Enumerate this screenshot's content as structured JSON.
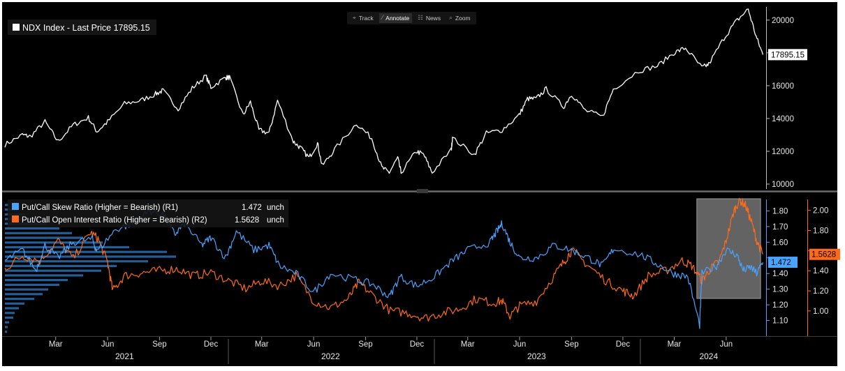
{
  "toolbar": {
    "items": [
      {
        "label": "Track",
        "icon": "crosshair-icon",
        "glyph": "⌖"
      },
      {
        "label": "Annotate",
        "icon": "pencil-icon",
        "glyph": "⁄"
      },
      {
        "label": "News",
        "icon": "news-icon",
        "glyph": "☷"
      },
      {
        "label": "Zoom",
        "icon": "magnifier-icon",
        "glyph": "⌕"
      }
    ],
    "active_index": 1
  },
  "colors": {
    "background": "#000000",
    "ndx": "#ffffff",
    "skew": "#4aa3ff",
    "oi": "#ff6a1a",
    "highlight": "#8a8a8a"
  },
  "chart_data": [
    {
      "type": "line",
      "series": [
        {
          "name": "NDX Index - Last Price",
          "last_value_label": "17895.15",
          "points": [
            [
              "2020-12-01",
              12400
            ],
            [
              "2021-01-01",
              13000
            ],
            [
              "2021-01-15",
              12900
            ],
            [
              "2021-02-10",
              13800
            ],
            [
              "2021-03-05",
              12600
            ],
            [
              "2021-04-01",
              13600
            ],
            [
              "2021-04-28",
              14050
            ],
            [
              "2021-05-13",
              13200
            ],
            [
              "2021-06-01",
              13800
            ],
            [
              "2021-07-01",
              14900
            ],
            [
              "2021-07-30",
              15100
            ],
            [
              "2021-08-25",
              15500
            ],
            [
              "2021-09-07",
              15700
            ],
            [
              "2021-10-04",
              14600
            ],
            [
              "2021-10-29",
              15850
            ],
            [
              "2021-11-22",
              16600
            ],
            [
              "2021-12-01",
              15900
            ],
            [
              "2021-12-27",
              16500
            ],
            [
              "2022-01-03",
              16500
            ],
            [
              "2022-01-27",
              14200
            ],
            [
              "2022-02-09",
              15000
            ],
            [
              "2022-02-24",
              13300
            ],
            [
              "2022-03-14",
              13100
            ],
            [
              "2022-03-29",
              15100
            ],
            [
              "2022-04-26",
              12600
            ],
            [
              "2022-05-09",
              12200
            ],
            [
              "2022-05-24",
              11600
            ],
            [
              "2022-06-08",
              12500
            ],
            [
              "2022-06-16",
              11100
            ],
            [
              "2022-07-08",
              12100
            ],
            [
              "2022-08-16",
              13700
            ],
            [
              "2022-09-12",
              12800
            ],
            [
              "2022-09-30",
              11000
            ],
            [
              "2022-10-13",
              10700
            ],
            [
              "2022-10-28",
              11600
            ],
            [
              "2022-11-03",
              10700
            ],
            [
              "2022-11-30",
              12000
            ],
            [
              "2022-12-13",
              11800
            ],
            [
              "2022-12-28",
              10700
            ],
            [
              "2023-01-31",
              12100
            ],
            [
              "2023-02-02",
              12800
            ],
            [
              "2023-03-13",
              11800
            ],
            [
              "2023-04-03",
              13100
            ],
            [
              "2023-05-01",
              13300
            ],
            [
              "2023-05-31",
              14200
            ],
            [
              "2023-06-15",
              15200
            ],
            [
              "2023-06-30",
              15200
            ],
            [
              "2023-07-18",
              15800
            ],
            [
              "2023-08-18",
              14700
            ],
            [
              "2023-09-01",
              15500
            ],
            [
              "2023-09-25",
              14500
            ],
            [
              "2023-10-26",
              14100
            ],
            [
              "2023-11-14",
              15800
            ],
            [
              "2023-12-28",
              16900
            ],
            [
              "2024-01-31",
              17200
            ],
            [
              "2024-02-29",
              18000
            ],
            [
              "2024-03-21",
              18300
            ],
            [
              "2024-04-19",
              17100
            ],
            [
              "2024-05-01",
              17300
            ],
            [
              "2024-05-28",
              18900
            ],
            [
              "2024-06-18",
              19900
            ],
            [
              "2024-07-10",
              20675
            ],
            [
              "2024-07-24",
              19000
            ],
            [
              "2024-08-05",
              17895.15
            ]
          ]
        }
      ],
      "legend": [
        "NDX Index - Last Price 17895.15"
      ],
      "y_axis": {
        "side": "right",
        "ticks": [
          10000,
          12000,
          14000,
          16000,
          18000,
          20000
        ],
        "tick_labels": [
          "10000",
          "12000",
          "14000",
          "16000",
          "",
          "20000"
        ],
        "ylim": [
          9700,
          21100
        ]
      },
      "grid": false
    },
    {
      "type": "line",
      "series": [
        {
          "name": "Put/Call Skew Ratio (Higher = Bearish) (R1)",
          "axis": "R1",
          "value_label": "1.472",
          "change_label": "unch",
          "points": [
            [
              "2020-12-01",
              1.48
            ],
            [
              "2021-01-01",
              1.55
            ],
            [
              "2021-01-25",
              1.42
            ],
            [
              "2021-02-10",
              1.58
            ],
            [
              "2021-03-05",
              1.5
            ],
            [
              "2021-04-01",
              1.6
            ],
            [
              "2021-05-05",
              1.62
            ],
            [
              "2021-05-13",
              1.54
            ],
            [
              "2021-06-15",
              1.68
            ],
            [
              "2021-07-15",
              1.72
            ],
            [
              "2021-08-15",
              1.8
            ],
            [
              "2021-09-07",
              1.78
            ],
            [
              "2021-09-28",
              1.65
            ],
            [
              "2021-10-15",
              1.72
            ],
            [
              "2021-11-15",
              1.58
            ],
            [
              "2021-12-01",
              1.63
            ],
            [
              "2021-12-27",
              1.5
            ],
            [
              "2022-01-15",
              1.67
            ],
            [
              "2022-02-15",
              1.55
            ],
            [
              "2022-03-14",
              1.58
            ],
            [
              "2022-04-01",
              1.45
            ],
            [
              "2022-05-01",
              1.4
            ],
            [
              "2022-06-01",
              1.28
            ],
            [
              "2022-07-01",
              1.4
            ],
            [
              "2022-08-15",
              1.36
            ],
            [
              "2022-09-15",
              1.33
            ],
            [
              "2022-10-13",
              1.25
            ],
            [
              "2022-11-01",
              1.38
            ],
            [
              "2022-12-01",
              1.32
            ],
            [
              "2023-01-01",
              1.38
            ],
            [
              "2023-02-01",
              1.48
            ],
            [
              "2023-03-01",
              1.55
            ],
            [
              "2023-04-10",
              1.6
            ],
            [
              "2023-04-20",
              1.66
            ],
            [
              "2023-05-01",
              1.72
            ],
            [
              "2023-05-15",
              1.6
            ],
            [
              "2023-06-01",
              1.5
            ],
            [
              "2023-07-01",
              1.5
            ],
            [
              "2023-08-01",
              1.58
            ],
            [
              "2023-09-01",
              1.55
            ],
            [
              "2023-10-01",
              1.5
            ],
            [
              "2023-10-26",
              1.45
            ],
            [
              "2023-11-15",
              1.56
            ],
            [
              "2024-01-01",
              1.52
            ],
            [
              "2024-01-31",
              1.46
            ],
            [
              "2024-02-29",
              1.4
            ],
            [
              "2024-03-25",
              1.38
            ],
            [
              "2024-04-15",
              1.07
            ],
            [
              "2024-04-19",
              1.4
            ],
            [
              "2024-05-15",
              1.45
            ],
            [
              "2024-06-01",
              1.55
            ],
            [
              "2024-06-20",
              1.52
            ],
            [
              "2024-07-01",
              1.42
            ],
            [
              "2024-07-15",
              1.44
            ],
            [
              "2024-07-25",
              1.4
            ],
            [
              "2024-08-05",
              1.472
            ]
          ]
        },
        {
          "name": "Put/Call Open Interest Ratio (Higher = Bearish) (R2)",
          "axis": "R2",
          "value_label": "1.5628",
          "change_label": "unch",
          "points": [
            [
              "2020-12-01",
              1.42
            ],
            [
              "2021-01-01",
              1.55
            ],
            [
              "2021-02-01",
              1.5
            ],
            [
              "2021-03-05",
              1.7
            ],
            [
              "2021-04-01",
              1.52
            ],
            [
              "2021-05-01",
              1.78
            ],
            [
              "2021-05-15",
              1.72
            ],
            [
              "2021-06-01",
              1.48
            ],
            [
              "2021-06-10",
              1.2
            ],
            [
              "2021-07-01",
              1.35
            ],
            [
              "2021-08-01",
              1.38
            ],
            [
              "2021-09-01",
              1.4
            ],
            [
              "2021-10-01",
              1.42
            ],
            [
              "2021-11-01",
              1.35
            ],
            [
              "2021-12-01",
              1.38
            ],
            [
              "2022-01-01",
              1.3
            ],
            [
              "2022-02-01",
              1.22
            ],
            [
              "2022-03-01",
              1.3
            ],
            [
              "2022-04-01",
              1.25
            ],
            [
              "2022-05-01",
              1.35
            ],
            [
              "2022-06-01",
              1.1
            ],
            [
              "2022-07-01",
              1.03
            ],
            [
              "2022-08-01",
              1.12
            ],
            [
              "2022-08-20",
              1.28
            ],
            [
              "2022-09-15",
              1.15
            ],
            [
              "2022-10-15",
              1.0
            ],
            [
              "2022-11-15",
              0.98
            ],
            [
              "2022-12-15",
              0.93
            ],
            [
              "2023-01-15",
              0.98
            ],
            [
              "2023-02-15",
              1.02
            ],
            [
              "2023-03-15",
              1.12
            ],
            [
              "2023-04-15",
              1.08
            ],
            [
              "2023-05-01",
              1.1
            ],
            [
              "2023-05-15",
              0.95
            ],
            [
              "2023-06-01",
              1.05
            ],
            [
              "2023-07-01",
              1.1
            ],
            [
              "2023-08-01",
              1.35
            ],
            [
              "2023-08-20",
              1.5
            ],
            [
              "2023-09-01",
              1.6
            ],
            [
              "2023-10-01",
              1.45
            ],
            [
              "2023-11-01",
              1.3
            ],
            [
              "2023-12-01",
              1.2
            ],
            [
              "2023-12-20",
              1.15
            ],
            [
              "2024-01-15",
              1.35
            ],
            [
              "2024-02-15",
              1.4
            ],
            [
              "2024-03-15",
              1.5
            ],
            [
              "2024-04-01",
              1.45
            ],
            [
              "2024-04-19",
              1.3
            ],
            [
              "2024-05-01",
              1.4
            ],
            [
              "2024-05-20",
              1.5
            ],
            [
              "2024-06-01",
              1.7
            ],
            [
              "2024-06-15",
              2.0
            ],
            [
              "2024-06-25",
              2.1
            ],
            [
              "2024-07-05",
              2.05
            ],
            [
              "2024-07-15",
              1.9
            ],
            [
              "2024-07-25",
              1.7
            ],
            [
              "2024-08-05",
              1.5628
            ]
          ]
        }
      ],
      "legend": [
        {
          "label": "Put/Call Skew Ratio (Higher = Bearish) (R1)",
          "value": "1.472",
          "change": "unch"
        },
        {
          "label": "Put/Call Open Interest Ratio (Higher = Bearish) (R2)",
          "value": "1.5628",
          "change": "unch"
        }
      ],
      "y_axis_R1": {
        "ticks": [
          1.1,
          1.2,
          1.3,
          1.4,
          1.5,
          1.6,
          1.7,
          1.8
        ],
        "tick_labels": [
          "1.10",
          "1.20",
          "1.30",
          "1.40",
          "",
          "1.60",
          "1.70",
          "1.80"
        ],
        "ylim": [
          1.0,
          1.9
        ]
      },
      "y_axis_R2": {
        "ticks": [
          1.0,
          1.2,
          1.4,
          1.6,
          1.8,
          2.0
        ],
        "tick_labels": [
          "1.00",
          "1.20",
          "1.40",
          "",
          "1.80",
          "2.00"
        ],
        "ylim": [
          0.75,
          2.15
        ]
      },
      "highlight_box": {
        "x_start": "2024-04-10",
        "x_end": "2024-08-01"
      },
      "volume_profile_bins": [
        [
          1.02,
          3
        ],
        [
          1.05,
          4
        ],
        [
          1.08,
          6
        ],
        [
          1.11,
          12
        ],
        [
          1.14,
          14
        ],
        [
          1.17,
          20
        ],
        [
          1.2,
          28
        ],
        [
          1.23,
          42
        ],
        [
          1.26,
          54
        ],
        [
          1.29,
          62
        ],
        [
          1.32,
          78
        ],
        [
          1.35,
          90
        ],
        [
          1.38,
          112
        ],
        [
          1.41,
          138
        ],
        [
          1.44,
          160
        ],
        [
          1.47,
          205
        ],
        [
          1.5,
          245
        ],
        [
          1.53,
          232
        ],
        [
          1.56,
          178
        ],
        [
          1.59,
          140
        ],
        [
          1.62,
          112
        ],
        [
          1.65,
          96
        ],
        [
          1.68,
          78
        ],
        [
          1.71,
          60
        ],
        [
          1.74,
          45
        ],
        [
          1.77,
          28
        ],
        [
          1.8,
          14
        ],
        [
          1.83,
          6
        ]
      ],
      "grid": false
    }
  ],
  "x_axis": {
    "start": "2020-12-01",
    "end": "2024-08-07",
    "month_ticks": [
      {
        "label": "Mar",
        "date": "2021-03-01"
      },
      {
        "label": "Jun",
        "date": "2021-06-01"
      },
      {
        "label": "Sep",
        "date": "2021-09-01"
      },
      {
        "label": "Dec",
        "date": "2021-12-01"
      },
      {
        "label": "Mar",
        "date": "2022-03-01"
      },
      {
        "label": "Jun",
        "date": "2022-06-01"
      },
      {
        "label": "Sep",
        "date": "2022-09-01"
      },
      {
        "label": "Dec",
        "date": "2022-12-01"
      },
      {
        "label": "Mar",
        "date": "2023-03-01"
      },
      {
        "label": "Jun",
        "date": "2023-06-01"
      },
      {
        "label": "Sep",
        "date": "2023-09-01"
      },
      {
        "label": "Dec",
        "date": "2023-12-01"
      },
      {
        "label": "Mar",
        "date": "2024-03-01"
      },
      {
        "label": "Jun",
        "date": "2024-06-01"
      }
    ],
    "year_labels": [
      {
        "label": "2021",
        "date": "2021-07-01"
      },
      {
        "label": "2022",
        "date": "2022-07-01"
      },
      {
        "label": "2023",
        "date": "2023-07-01"
      },
      {
        "label": "2024",
        "date": "2024-05-01"
      }
    ],
    "year_separators": [
      "2022-01-01",
      "2023-01-01",
      "2024-01-01"
    ]
  }
}
